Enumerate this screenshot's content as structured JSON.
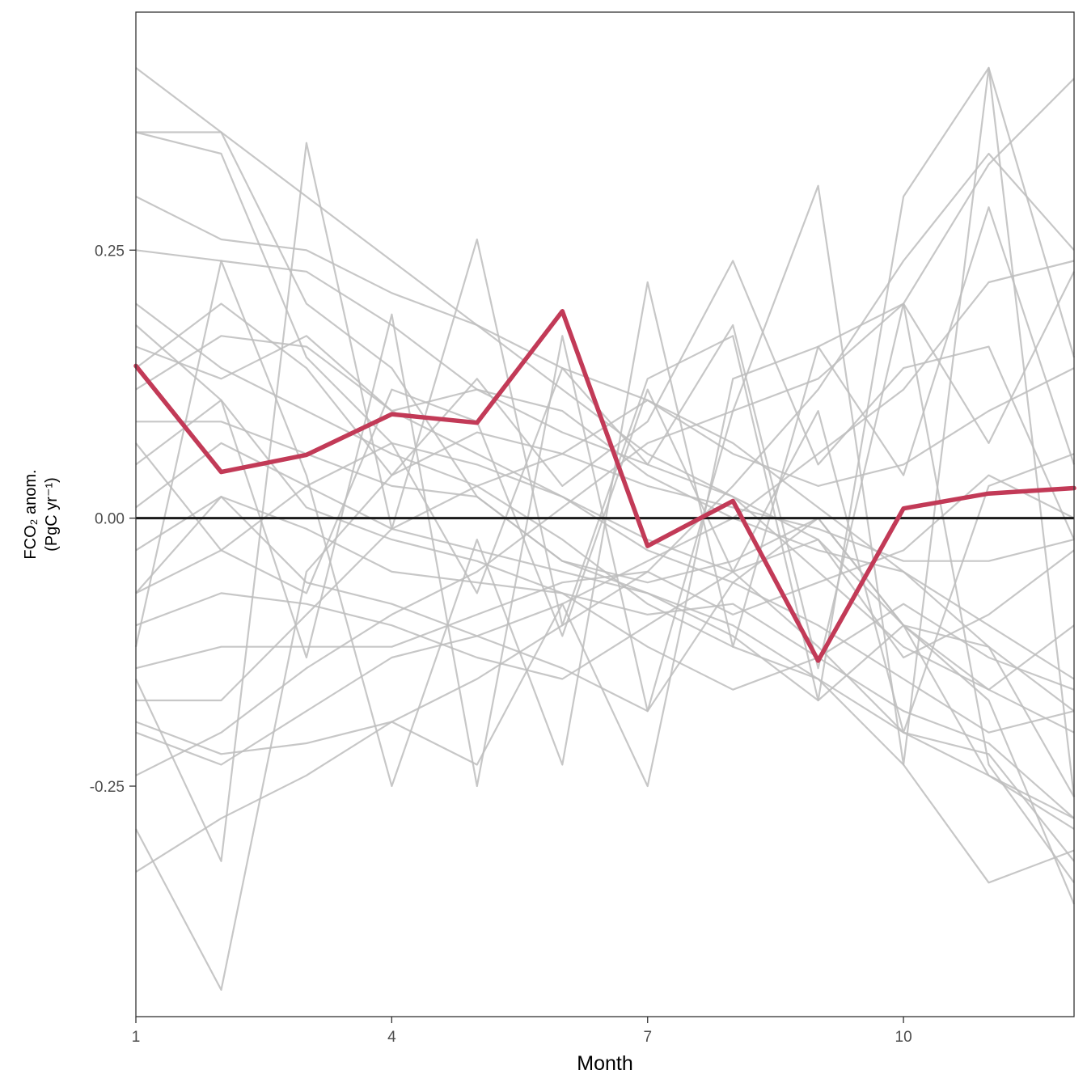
{
  "chart_data": {
    "type": "line",
    "xlabel": "Month",
    "ylabel_line1": "FCO₂ anom.",
    "ylabel_line2": "(PgC yr⁻¹)",
    "x": [
      1,
      2,
      3,
      4,
      5,
      6,
      7,
      8,
      9,
      10,
      11,
      12
    ],
    "xlim": [
      1,
      12
    ],
    "ylim": [
      -0.465,
      0.472
    ],
    "x_ticks": [
      1,
      4,
      7,
      10
    ],
    "x_tick_labels": [
      "1",
      "4",
      "7",
      "10"
    ],
    "y_ticks": [
      -0.25,
      0,
      0.25
    ],
    "y_tick_labels": [
      "-0.25",
      "0.00",
      "0.25"
    ],
    "reference_line": 0,
    "highlight_color": "#c23a57",
    "background_color": "#bdbdbd",
    "grid": false,
    "highlight_series": {
      "values": [
        0.142,
        0.043,
        0.059,
        0.097,
        0.089,
        0.193,
        -0.026,
        0.016,
        -0.133,
        0.009,
        0.023,
        0.028
      ]
    },
    "background_series": [
      {
        "values": [
          0.42,
          0.36,
          0.3,
          0.24,
          0.18,
          0.12,
          0.06,
          0.02,
          -0.02,
          -0.1,
          -0.24,
          -0.29
        ]
      },
      {
        "values": [
          0.36,
          0.36,
          0.2,
          0.14,
          0.02,
          -0.04,
          -0.06,
          -0.04,
          0.0,
          -0.1,
          -0.17,
          -0.36
        ]
      },
      {
        "values": [
          0.36,
          0.34,
          0.15,
          0.07,
          0.05,
          0.02,
          -0.03,
          -0.06,
          -0.1,
          -0.15,
          -0.2,
          -0.18
        ]
      },
      {
        "values": [
          0.3,
          0.26,
          0.25,
          0.21,
          0.18,
          0.14,
          0.11,
          0.07,
          0.01,
          -0.05,
          -0.1,
          -0.15
        ]
      },
      {
        "values": [
          0.25,
          0.24,
          0.23,
          0.18,
          0.12,
          0.08,
          0.05,
          0.02,
          -0.05,
          -0.12,
          -0.16,
          -0.2
        ]
      },
      {
        "values": [
          0.2,
          0.14,
          0.1,
          0.06,
          0.03,
          -0.02,
          -0.08,
          -0.12,
          -0.15,
          -0.2,
          -0.22,
          -0.32
        ]
      },
      {
        "values": [
          0.16,
          0.13,
          0.17,
          0.1,
          0.12,
          0.1,
          0.04,
          0.0,
          -0.03,
          -0.05,
          -0.12,
          -0.26
        ]
      },
      {
        "values": [
          0.12,
          0.17,
          0.16,
          0.1,
          0.06,
          0.02,
          -0.02,
          -0.05,
          -0.12,
          -0.2,
          -0.24,
          -0.28
        ]
      },
      {
        "values": [
          0.09,
          0.09,
          0.06,
          0.03,
          0.02,
          -0.04,
          -0.07,
          -0.1,
          -0.15,
          -0.23,
          -0.34,
          -0.31
        ]
      },
      {
        "values": [
          0.05,
          0.11,
          0.01,
          -0.02,
          -0.04,
          -0.07,
          -0.09,
          -0.08,
          -0.13,
          -0.18,
          -0.21,
          -0.28
        ]
      },
      {
        "values": [
          0.01,
          0.07,
          0.03,
          -0.01,
          -0.03,
          -0.05,
          -0.07,
          -0.11,
          -0.17,
          -0.1,
          -0.12,
          -0.18
        ]
      },
      {
        "values": [
          -0.03,
          0.02,
          -0.01,
          -0.05,
          -0.06,
          -0.07,
          -0.12,
          -0.16,
          -0.13,
          -0.08,
          -0.13,
          -0.16
        ]
      },
      {
        "values": [
          -0.07,
          0.02,
          -0.06,
          -0.08,
          -0.11,
          -0.14,
          -0.18,
          -0.06,
          0.0,
          -0.1,
          -0.16,
          -0.1
        ]
      },
      {
        "values": [
          -0.1,
          -0.07,
          -0.08,
          -0.1,
          -0.13,
          -0.15,
          -0.1,
          -0.05,
          -0.02,
          -0.13,
          -0.09,
          -0.03
        ]
      },
      {
        "values": [
          -0.14,
          -0.12,
          -0.12,
          -0.12,
          -0.09,
          -0.06,
          -0.05,
          -0.09,
          -0.06,
          -0.03,
          0.04,
          0.0
        ]
      },
      {
        "values": [
          -0.17,
          -0.17,
          -0.09,
          -0.01,
          0.03,
          0.06,
          0.11,
          0.06,
          0.03,
          0.05,
          0.1,
          0.14
        ]
      },
      {
        "values": [
          -0.2,
          -0.23,
          -0.18,
          -0.13,
          -0.11,
          -0.08,
          -0.04,
          0.0,
          0.06,
          0.12,
          0.22,
          0.24
        ]
      },
      {
        "values": [
          -0.24,
          -0.2,
          -0.14,
          -0.09,
          -0.05,
          0.01,
          0.07,
          0.1,
          0.13,
          0.2,
          0.33,
          0.41
        ]
      },
      {
        "values": [
          -0.33,
          -0.28,
          -0.24,
          -0.19,
          -0.15,
          -0.1,
          -0.05,
          0.03,
          0.12,
          0.24,
          0.34,
          0.25
        ]
      },
      {
        "values": [
          -0.29,
          -0.44,
          -0.05,
          0.04,
          0.08,
          0.06,
          0.03,
          0.01,
          -0.01,
          -0.04,
          -0.04,
          -0.02
        ]
      },
      {
        "values": [
          -0.12,
          0.24,
          0.04,
          -0.25,
          -0.02,
          -0.23,
          0.22,
          -0.12,
          0.16,
          0.04,
          0.29,
          0.05
        ]
      },
      {
        "values": [
          -0.15,
          -0.32,
          0.35,
          -0.01,
          0.26,
          -0.1,
          0.13,
          0.17,
          -0.17,
          0.3,
          0.42,
          0.15
        ]
      },
      {
        "values": [
          0.18,
          0.11,
          -0.13,
          0.19,
          -0.25,
          0.17,
          -0.18,
          0.1,
          0.31,
          -0.23,
          0.42,
          -0.26
        ]
      },
      {
        "values": [
          -0.19,
          -0.22,
          -0.21,
          -0.19,
          -0.23,
          -0.08,
          -0.25,
          0.13,
          0.16,
          0.2,
          -0.23,
          -0.34
        ]
      },
      {
        "values": [
          0.14,
          0.2,
          0.14,
          0.04,
          0.13,
          0.03,
          0.09,
          0.24,
          0.05,
          0.14,
          0.16,
          -0.02
        ]
      },
      {
        "values": [
          -0.07,
          -0.03,
          0.03,
          0.07,
          -0.07,
          0.14,
          0.05,
          0.18,
          -0.14,
          0.2,
          0.07,
          0.23
        ]
      },
      {
        "values": [
          0.07,
          -0.03,
          -0.07,
          0.12,
          0.09,
          -0.11,
          0.12,
          -0.05,
          0.1,
          -0.2,
          0.03,
          0.06
        ]
      }
    ]
  }
}
